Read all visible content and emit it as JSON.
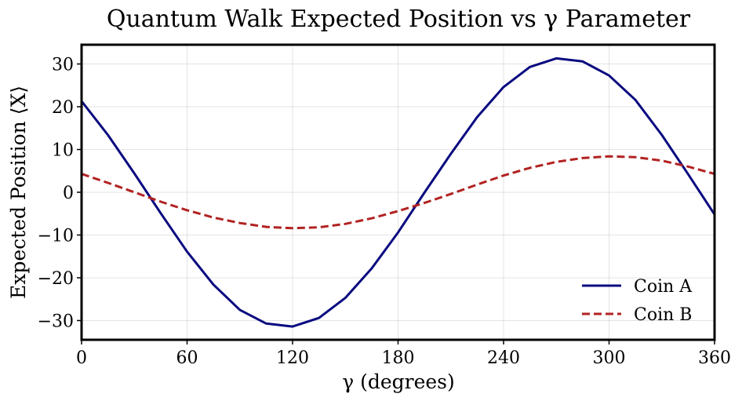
{
  "chart_data": {
    "type": "line",
    "title": "Quantum Walk Expected Position vs γ Parameter",
    "xlabel": "γ (degrees)",
    "ylabel": "Expected Position ⟨X⟩",
    "xlim": [
      0,
      360
    ],
    "ylim": [
      -34.5,
      34.5
    ],
    "xticks": [
      0,
      60,
      120,
      180,
      240,
      300,
      360
    ],
    "yticks": [
      -30,
      -20,
      -10,
      0,
      10,
      20,
      30
    ],
    "xtick_labels": [
      "0",
      "60",
      "120",
      "180",
      "240",
      "300",
      "360"
    ],
    "ytick_labels": [
      "−30",
      "−20",
      "−10",
      "0",
      "10",
      "20",
      "30"
    ],
    "grid": true,
    "legend_position": "bottom-right",
    "x": [
      0,
      15,
      30,
      45,
      60,
      75,
      90,
      105,
      120,
      135,
      150,
      165,
      180,
      195,
      210,
      225,
      240,
      255,
      270,
      285,
      300,
      315,
      330,
      345,
      360
    ],
    "series": [
      {
        "name": "Coin A",
        "style": "solid",
        "color": "#0a0a80",
        "values": [
          21.3,
          13.4,
          4.4,
          -4.9,
          -13.9,
          -21.6,
          -27.5,
          -30.7,
          -31.4,
          -29.4,
          -24.7,
          -17.8,
          -9.4,
          -0.1,
          9.0,
          17.6,
          24.6,
          29.3,
          31.3,
          30.6,
          27.3,
          21.6,
          13.4,
          4.2,
          -5.2
        ]
      },
      {
        "name": "Coin B",
        "style": "dashed",
        "color": "#b22222",
        "values": [
          4.3,
          2.2,
          0.0,
          -2.2,
          -4.2,
          -5.9,
          -7.2,
          -8.1,
          -8.4,
          -8.2,
          -7.4,
          -6.1,
          -4.4,
          -2.5,
          -0.4,
          1.8,
          3.9,
          5.7,
          7.1,
          8.0,
          8.4,
          8.2,
          7.4,
          6.0,
          4.3
        ]
      }
    ]
  }
}
